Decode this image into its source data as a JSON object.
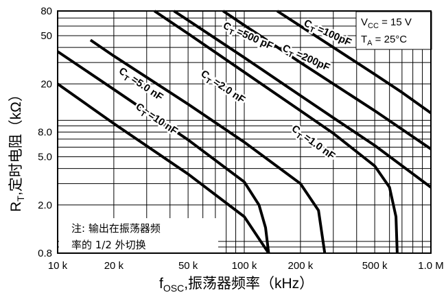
{
  "chart_data": {
    "type": "line",
    "title": "",
    "x_scale": "log",
    "y_scale": "log",
    "xlim": [
      10000,
      1000000
    ],
    "ylim": [
      0.8,
      80
    ],
    "xlabel": {
      "main": "f",
      "sub": "OSC",
      "rest": ",振荡器频率（kHz）"
    },
    "ylabel": {
      "main": "R",
      "sub": "T",
      "rest": ",定时电阻（kΩ）"
    },
    "x_ticks": [
      {
        "value": 10000,
        "label": "10 k"
      },
      {
        "value": 20000,
        "label": "20 k"
      },
      {
        "value": 50000,
        "label": "50 k"
      },
      {
        "value": 100000,
        "label": "100 k"
      },
      {
        "value": 200000,
        "label": "200 k"
      },
      {
        "value": 500000,
        "label": "500 k"
      },
      {
        "value": 1000000,
        "label": "1.0 M"
      }
    ],
    "y_ticks": [
      {
        "value": 0.8,
        "label": "0.8"
      },
      {
        "value": 2,
        "label": "2.0"
      },
      {
        "value": 5,
        "label": "5.0"
      },
      {
        "value": 8,
        "label": "8.0"
      },
      {
        "value": 20,
        "label": "20"
      },
      {
        "value": 50,
        "label": "50"
      },
      {
        "value": 80,
        "label": "80"
      }
    ],
    "grid": true,
    "conditions": {
      "vcc": {
        "main": "V",
        "sub": "CC",
        "rest": " = 15 V"
      },
      "ta": {
        "main": "T",
        "sub": "A",
        "rest": " = 25°C"
      }
    },
    "note": [
      "注: 输出在振荡器频",
      "率的 1/2 外切换"
    ],
    "series": [
      {
        "name": "C_T =100pF",
        "label_main": "C",
        "label_sub": "T",
        "label_rest": " =100pF",
        "points": [
          [
            150000,
            80
          ],
          [
            200000,
            60
          ],
          [
            300000,
            40
          ],
          [
            500000,
            24
          ],
          [
            700000,
            17
          ],
          [
            1000000,
            11.5
          ]
        ]
      },
      {
        "name": "C_T =200pF",
        "label_main": "C",
        "label_sub": "T",
        "label_rest": " =200pF",
        "points": [
          [
            77000,
            80
          ],
          [
            100000,
            61
          ],
          [
            200000,
            30
          ],
          [
            300000,
            20
          ],
          [
            500000,
            12
          ],
          [
            1000000,
            5.8
          ]
        ]
      },
      {
        "name": "C_T =500 pF",
        "label_main": "C",
        "label_sub": "T",
        "label_rest": " =500 pF",
        "points": [
          [
            42000,
            80
          ],
          [
            50000,
            67
          ],
          [
            100000,
            33
          ],
          [
            200000,
            16
          ],
          [
            300000,
            10.5
          ],
          [
            500000,
            6.2
          ],
          [
            1000000,
            2.8
          ]
        ]
      },
      {
        "name": "C_T =1.0 nF",
        "label_main": "C",
        "label_sub": "T",
        "label_rest": " =1.0 nF",
        "points": [
          [
            33000,
            80
          ],
          [
            50000,
            52
          ],
          [
            100000,
            25
          ],
          [
            200000,
            12
          ],
          [
            300000,
            7.8
          ],
          [
            500000,
            4.2
          ],
          [
            600000,
            2.8
          ],
          [
            650000,
            1.6
          ],
          [
            660000,
            0.8
          ]
        ]
      },
      {
        "name": "C_T =2.0 nF",
        "label_main": "C",
        "label_sub": "T",
        "label_rest": " =2.0 nF",
        "points": [
          [
            15000,
            46
          ],
          [
            20000,
            34
          ],
          [
            50000,
            13.6
          ],
          [
            100000,
            6.6
          ],
          [
            200000,
            3.0
          ],
          [
            250000,
            1.8
          ],
          [
            270000,
            0.8
          ]
        ]
      },
      {
        "name": "C_T =5.0 nF",
        "label_main": "C",
        "label_sub": "T",
        "label_rest": " =5.0 nF",
        "points": [
          [
            10000,
            37
          ],
          [
            20000,
            18
          ],
          [
            50000,
            6.9
          ],
          [
            100000,
            3.1
          ],
          [
            120000,
            2.0
          ],
          [
            130000,
            1.3
          ],
          [
            135000,
            0.8
          ]
        ]
      },
      {
        "name": "C_T =10 nF",
        "label_main": "C",
        "label_sub": "T",
        "label_rest": " =10 nF",
        "points": [
          [
            10000,
            20
          ],
          [
            20000,
            9.4
          ],
          [
            50000,
            3.6
          ],
          [
            100000,
            1.6
          ],
          [
            135000,
            0.8
          ]
        ]
      }
    ],
    "label_positions": [
      {
        "series": 0,
        "x": 280000,
        "y": 53,
        "angle": 24
      },
      {
        "series": 1,
        "x": 215000,
        "y": 33,
        "angle": 24
      },
      {
        "series": 2,
        "x": 105000,
        "y": 50,
        "angle": 24
      },
      {
        "series": 3,
        "x": 235000,
        "y": 6.6,
        "angle": 36
      },
      {
        "series": 4,
        "x": 77000,
        "y": 19,
        "angle": 34
      },
      {
        "series": 5,
        "x": 28000,
        "y": 20,
        "angle": 34
      },
      {
        "series": 6,
        "x": 34000,
        "y": 10.3,
        "angle": 34
      }
    ]
  }
}
